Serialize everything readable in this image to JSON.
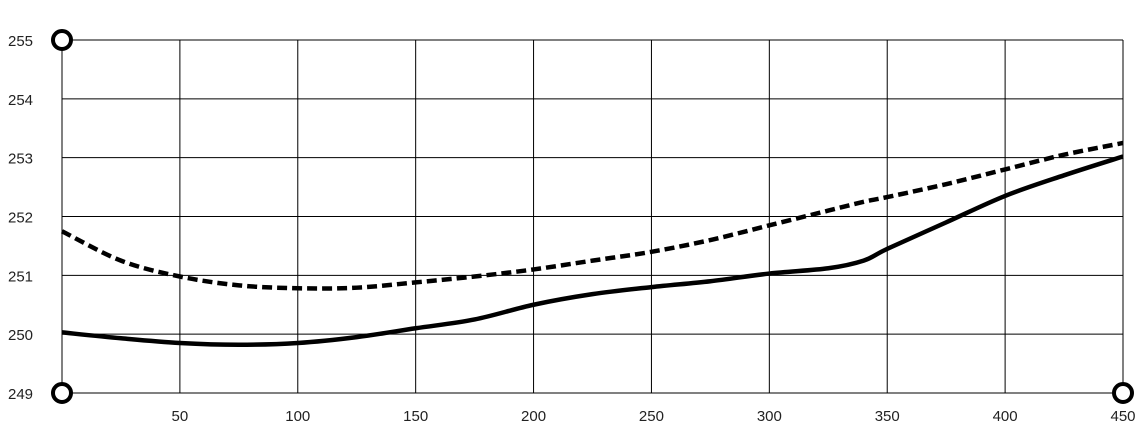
{
  "chart_data": {
    "type": "line",
    "title": "",
    "xlabel": "",
    "ylabel": "",
    "xlim": [
      0,
      450
    ],
    "ylim": [
      249,
      255
    ],
    "grid": true,
    "x_ticks": [
      50,
      100,
      150,
      200,
      250,
      300,
      350,
      400,
      450
    ],
    "y_ticks": [
      249,
      250,
      251,
      252,
      253,
      254,
      255
    ],
    "x": [
      0,
      25,
      50,
      75,
      100,
      125,
      150,
      175,
      200,
      225,
      250,
      275,
      300,
      325,
      340,
      350,
      375,
      400,
      425,
      450
    ],
    "series": [
      {
        "style": "solid",
        "color": "#000000",
        "values": [
          250.03,
          249.93,
          249.85,
          249.82,
          249.85,
          249.95,
          250.1,
          250.25,
          250.5,
          250.68,
          250.8,
          250.9,
          251.03,
          251.12,
          251.25,
          251.45,
          251.9,
          252.35,
          252.7,
          253.02
        ]
      },
      {
        "style": "dashed",
        "color": "#000000",
        "values": [
          251.75,
          251.25,
          250.98,
          250.83,
          250.78,
          250.79,
          250.88,
          250.98,
          251.1,
          251.25,
          251.4,
          251.6,
          251.85,
          252.1,
          252.25,
          252.33,
          252.55,
          252.8,
          253.05,
          253.25
        ]
      }
    ],
    "markers": [
      {
        "shape": "circle",
        "x": 0,
        "y": 255
      },
      {
        "shape": "circle",
        "x": 0,
        "y": 249
      },
      {
        "shape": "circle",
        "x": 450,
        "y": 249
      }
    ]
  }
}
